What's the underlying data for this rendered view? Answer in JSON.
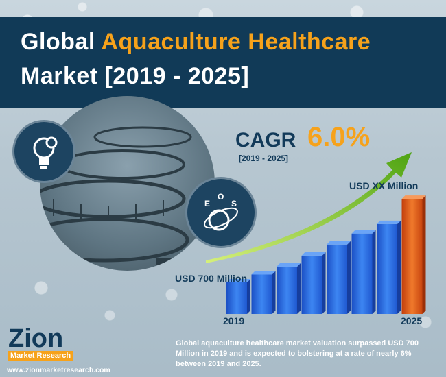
{
  "title": {
    "prefix": "Global ",
    "highlight": "Aquaculture Healthcare",
    "line2": "Market [2019 - 2025]"
  },
  "cagr": {
    "label": "CAGR",
    "value": "6.0%",
    "period": "[2019 - 2025]"
  },
  "icons": {
    "bulb": "lightbulb-gear-icon",
    "eos_letters": [
      "E",
      "O",
      "S"
    ],
    "eos": "eos-globe-icon"
  },
  "colors": {
    "header_bg": "#113a57",
    "accent": "#f6a21b",
    "bar_blue": "#2f6fe6",
    "bar_orange": "#e2571a",
    "arrow_green": "#7ac21e"
  },
  "chart_data": {
    "type": "bar",
    "categories": [
      "2019",
      "",
      "",
      "",
      "",
      "",
      "",
      "2025"
    ],
    "values": [
      1.0,
      1.25,
      1.5,
      1.85,
      2.2,
      2.55,
      2.85,
      3.65
    ],
    "start_label": "USD 700 Million",
    "end_label": "USD XX Million",
    "x_start_label": "2019",
    "x_end_label": "2025"
  },
  "logo": {
    "name": "Zion",
    "sub": "Market Research"
  },
  "footer": {
    "url": "www.zionmarketresearch.com",
    "description": "Global aquaculture healthcare market valuation surpassed USD 700 Million in 2019 and is expected to bolstering at a rate of nearly 6% between 2019 and 2025."
  }
}
